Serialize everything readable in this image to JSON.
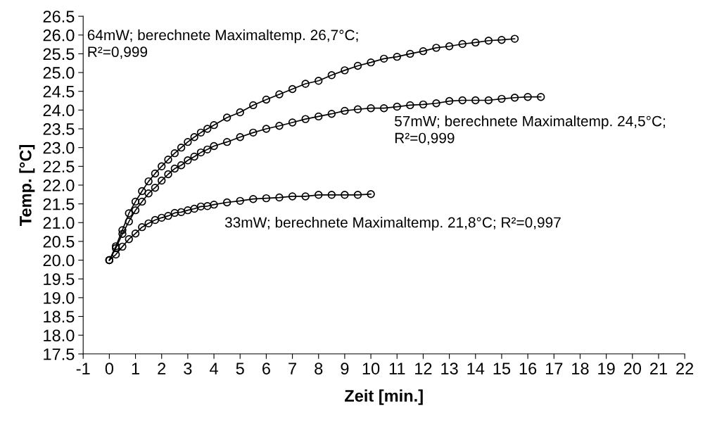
{
  "chart_data": {
    "type": "line",
    "xlabel": "Zeit [min.]",
    "ylabel": "Temp. [°C]",
    "xlim": [
      -1,
      22
    ],
    "xticks": [
      -1,
      0,
      1,
      2,
      3,
      4,
      5,
      6,
      7,
      8,
      9,
      10,
      11,
      12,
      13,
      14,
      15,
      16,
      17,
      18,
      19,
      20,
      21,
      22
    ],
    "ylim": [
      17.5,
      26.5
    ],
    "yticks": [
      17.5,
      {
        "value": 18,
        "label": "18.0"
      },
      18.5,
      {
        "value": 19,
        "label": "19.0"
      },
      19.5,
      {
        "value": 20,
        "label": "20.0"
      },
      20.5,
      {
        "value": 21,
        "label": "21.0"
      },
      21.5,
      {
        "value": 22,
        "label": "22.0"
      },
      22.5,
      {
        "value": 23,
        "label": "23.0"
      },
      23.5,
      {
        "value": 24,
        "label": "24.0"
      },
      24.5,
      {
        "value": 25,
        "label": "25.0"
      },
      25.5,
      {
        "value": 26,
        "label": "26.0"
      },
      26.5
    ],
    "grid": false,
    "marker": "circle",
    "line_style": "solid",
    "series": [
      {
        "color": "#000000",
        "x": [
          0,
          0.25,
          0.5,
          0.75,
          1,
          1.25,
          1.5,
          1.75,
          2,
          2.25,
          2.5,
          2.75,
          3,
          3.25,
          3.5,
          3.75,
          4,
          4.5,
          5,
          5.5,
          6,
          6.5,
          7,
          7.5,
          8,
          8.5,
          9,
          9.5,
          10,
          10.5,
          11,
          11.5,
          12,
          12.5,
          13,
          13.5,
          14,
          14.5,
          15,
          15.5
        ],
        "values": [
          20.0,
          20.37,
          20.8,
          21.25,
          21.56,
          21.84,
          22.1,
          22.31,
          22.5,
          22.68,
          22.85,
          23.0,
          23.15,
          23.28,
          23.4,
          23.5,
          23.6,
          23.8,
          23.94,
          24.13,
          24.28,
          24.42,
          24.56,
          24.7,
          24.78,
          24.93,
          25.06,
          25.18,
          25.27,
          25.37,
          25.42,
          25.5,
          25.57,
          25.66,
          25.7,
          25.76,
          25.8,
          25.85,
          25.87,
          25.9
        ]
      },
      {
        "color": "#000000",
        "x": [
          0,
          0.25,
          0.5,
          0.75,
          1,
          1.25,
          1.5,
          1.75,
          2,
          2.25,
          2.5,
          2.75,
          3,
          3.25,
          3.5,
          3.75,
          4,
          4.5,
          5,
          5.5,
          6,
          6.5,
          7,
          7.5,
          8,
          8.5,
          9,
          9.5,
          10,
          10.5,
          11,
          11.5,
          12,
          12.5,
          13,
          13.5,
          14,
          14.5,
          15,
          15.5,
          16,
          16.5
        ],
        "values": [
          20.0,
          20.32,
          20.7,
          21.03,
          21.33,
          21.56,
          21.78,
          21.93,
          22.12,
          22.29,
          22.44,
          22.53,
          22.66,
          22.76,
          22.87,
          22.95,
          23.04,
          23.15,
          23.28,
          23.4,
          23.5,
          23.58,
          23.67,
          23.76,
          23.83,
          23.9,
          23.98,
          24.02,
          24.05,
          24.05,
          24.09,
          24.13,
          24.15,
          24.18,
          24.24,
          24.26,
          24.26,
          24.26,
          24.3,
          24.33,
          24.35,
          24.35
        ]
      },
      {
        "color": "#000000",
        "x": [
          0,
          0.25,
          0.5,
          0.75,
          1,
          1.25,
          1.5,
          1.75,
          2,
          2.25,
          2.5,
          2.75,
          3,
          3.25,
          3.5,
          3.75,
          4,
          4.5,
          5,
          5.5,
          6,
          6.5,
          7,
          7.5,
          8,
          8.5,
          9,
          9.5,
          10
        ],
        "values": [
          20.0,
          20.15,
          20.36,
          20.56,
          20.71,
          20.88,
          20.98,
          21.07,
          21.13,
          21.18,
          21.26,
          21.28,
          21.33,
          21.37,
          21.43,
          21.44,
          21.48,
          21.54,
          21.58,
          21.63,
          21.65,
          21.67,
          21.7,
          21.7,
          21.74,
          21.74,
          21.74,
          21.74,
          21.76
        ]
      }
    ],
    "annotations": [
      "64mW; berechnete Maximaltemp. 26,7°C;\nR²=0,999",
      "57mW; berechnete Maximaltemp. 24,5°C;\nR²=0,999",
      "33mW; berechnete Maximaltemp. 21,8°C; R²=0,997"
    ]
  }
}
